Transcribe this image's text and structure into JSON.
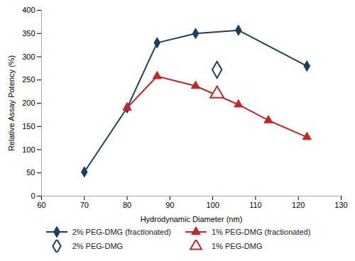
{
  "chart_data": {
    "type": "line",
    "xlabel": "Hydrodynamic Diameter (nm)",
    "ylabel": "Relative Assay Potency (%)",
    "xlim": [
      60,
      130
    ],
    "ylim": [
      0,
      400
    ],
    "xticks": [
      60,
      70,
      80,
      90,
      100,
      110,
      120,
      130
    ],
    "yticks": [
      0,
      50,
      100,
      150,
      200,
      250,
      300,
      350,
      400
    ],
    "grid": false,
    "legend": "bottom",
    "series": [
      {
        "name": "2% PEG-DMG (fractionated)",
        "color": "#1c3f5e",
        "marker": "diamond",
        "line_style": "solid",
        "x": [
          70,
          80,
          87,
          96,
          106,
          122
        ],
        "values": [
          52,
          190,
          330,
          350,
          357,
          280
        ]
      },
      {
        "name": "2% PEG-DMG",
        "color": "#1c3f5e",
        "marker": "open_diamond",
        "line_style": "none",
        "x": [
          101
        ],
        "values": [
          272
        ]
      },
      {
        "name": "1% PEG-DMG (fractionated)",
        "color": "#c0292a",
        "marker": "triangle",
        "line_style": "solid",
        "x": [
          80,
          87,
          96,
          106,
          113,
          122
        ],
        "values": [
          190,
          258,
          237,
          197,
          163,
          127
        ]
      },
      {
        "name": "1% PEG-DMG",
        "color": "#c0292a",
        "marker": "open_triangle",
        "line_style": "none",
        "x": [
          101
        ],
        "values": [
          220
        ]
      }
    ]
  }
}
